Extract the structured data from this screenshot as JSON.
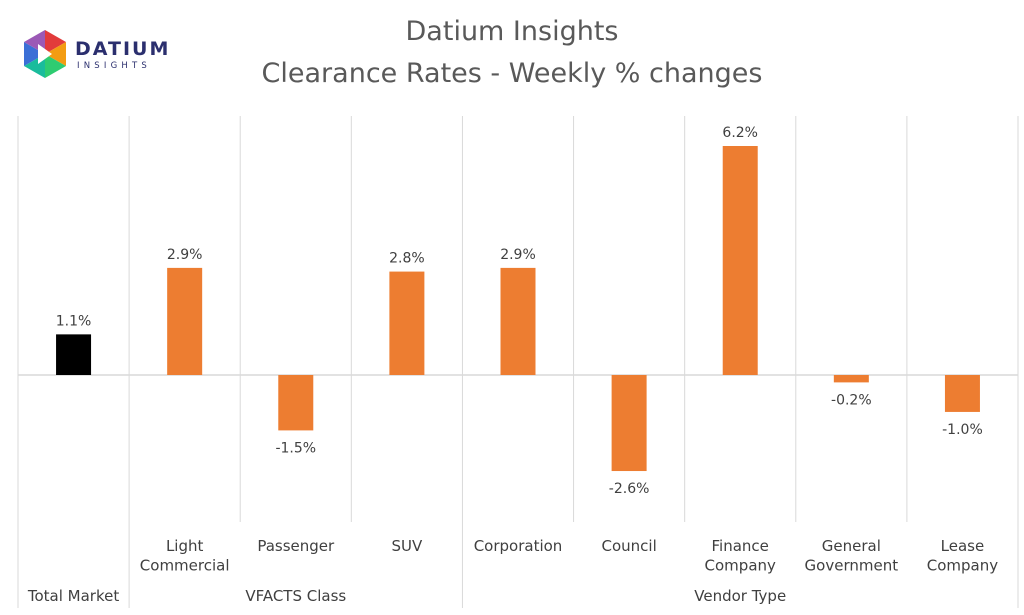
{
  "logo": {
    "word": "DATIUM",
    "sub": "INSIGHTS"
  },
  "chart_data": {
    "type": "bar",
    "title": "Datium Insights",
    "subtitle": "Clearance Rates - Weekly % changes",
    "categories": [
      {
        "label": [
          "Total Market"
        ],
        "group": "Total Market",
        "value": 1.1,
        "label_text": "1.1%",
        "color": "#000000"
      },
      {
        "label": [
          "Light",
          "Commercial"
        ],
        "group": "VFACTS Class",
        "value": 2.9,
        "label_text": "2.9%",
        "color": "#ED7D31"
      },
      {
        "label": [
          "Passenger"
        ],
        "group": "VFACTS Class",
        "value": -1.5,
        "label_text": "-1.5%",
        "color": "#ED7D31"
      },
      {
        "label": [
          "SUV"
        ],
        "group": "VFACTS Class",
        "value": 2.8,
        "label_text": "2.8%",
        "color": "#ED7D31"
      },
      {
        "label": [
          "Corporation"
        ],
        "group": "Vendor Type",
        "value": 2.9,
        "label_text": "2.9%",
        "color": "#ED7D31"
      },
      {
        "label": [
          "Council"
        ],
        "group": "Vendor Type",
        "value": -2.6,
        "label_text": "-2.6%",
        "color": "#ED7D31"
      },
      {
        "label": [
          "Finance",
          "Company"
        ],
        "group": "Vendor Type",
        "value": 6.2,
        "label_text": "6.2%",
        "color": "#ED7D31"
      },
      {
        "label": [
          "General",
          "Government"
        ],
        "group": "Vendor Type",
        "value": -0.2,
        "label_text": "-0.2%",
        "color": "#ED7D31"
      },
      {
        "label": [
          "Lease",
          "Company"
        ],
        "group": "Vendor Type",
        "value": -1.0,
        "label_text": "-1.0%",
        "color": "#ED7D31"
      }
    ],
    "groups": [
      "Total Market",
      "VFACTS Class",
      "Vendor Type"
    ],
    "ylim": [
      -4.0,
      7.0
    ],
    "grid": false,
    "legend": "none"
  }
}
